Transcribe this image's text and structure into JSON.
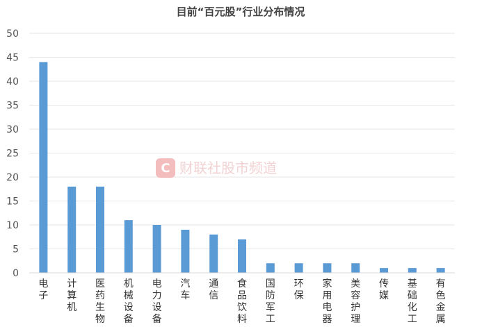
{
  "chart_data": {
    "type": "bar",
    "title": "目前“百元股”行业分布情况",
    "xlabel": "",
    "ylabel": "",
    "ylim": [
      0,
      50
    ],
    "yticks": [
      0,
      5,
      10,
      15,
      20,
      25,
      30,
      35,
      40,
      45,
      50
    ],
    "grid": true,
    "legend": "none",
    "bar_color": "#5B9BD5",
    "categories": [
      "电子",
      "计算机",
      "医药生物",
      "机械设备",
      "电力设备",
      "汽车",
      "通信",
      "食品饮料",
      "国防军工",
      "环保",
      "家用电器",
      "美容护理",
      "传媒",
      "基础化工",
      "有色金属"
    ],
    "values": [
      44,
      18,
      18,
      11,
      10,
      9,
      8,
      7,
      2,
      2,
      2,
      2,
      1,
      1,
      1
    ]
  },
  "watermark": {
    "text": "财联社股市频道",
    "logo_letter": "C",
    "color": "#E84A4A"
  }
}
